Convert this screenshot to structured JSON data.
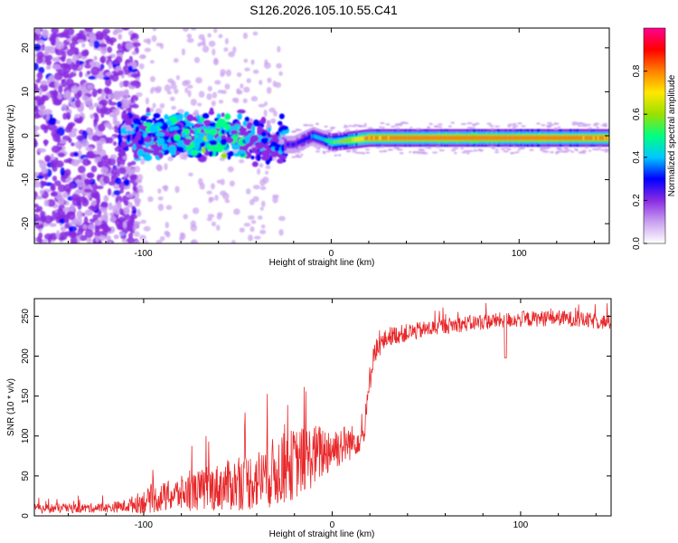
{
  "title": "S126.2026.105.10.55.C41",
  "chart_data": [
    {
      "type": "heatmap",
      "xlabel": "Height of straight line (km)",
      "ylabel": "Frequency (Hz)",
      "xlim": [
        -158,
        148
      ],
      "ylim": [
        -24.5,
        24.5
      ],
      "xticks": [
        -100,
        0,
        100
      ],
      "yticks": [
        -20,
        -10,
        0,
        10,
        20
      ],
      "colorbar": {
        "label": "Normalized spectral amplitude",
        "range": [
          0,
          1
        ],
        "ticks": [
          "0.0",
          "0.2",
          "0.4",
          "0.6",
          "0.8"
        ],
        "colors": [
          "#ffffff",
          "#c9a0f0",
          "#8a2be2",
          "#0000ff",
          "#00c8ff",
          "#00ff80",
          "#9be000",
          "#ffe800",
          "#ff8000",
          "#ff0000",
          "#ff0090"
        ]
      },
      "signal_track": {
        "description_points_x": [
          -158,
          -120,
          -100,
          -80,
          -60,
          -40,
          -30,
          -20,
          -10,
          0,
          20,
          60,
          100,
          148
        ],
        "centre_hz": [
          0,
          0,
          0,
          0,
          0,
          -1,
          -2,
          -2,
          0,
          -1.5,
          -0.5,
          -0.5,
          -0.5,
          -0.5
        ],
        "peak_amplitude": [
          0.15,
          0.2,
          0.35,
          0.4,
          0.45,
          0.35,
          0.3,
          0.3,
          0.4,
          0.6,
          0.9,
          0.95,
          0.95,
          0.9
        ]
      }
    },
    {
      "type": "line",
      "xlabel": "Height of straight line (km)",
      "ylabel": "SNR (10 * v/v)",
      "xlim": [
        -158,
        148
      ],
      "ylim": [
        0,
        272
      ],
      "xticks": [
        -100,
        0,
        100
      ],
      "yticks": [
        0,
        50,
        100,
        150,
        200,
        250
      ],
      "series": [
        {
          "name": "SNR",
          "color": "#e8282a",
          "anchor_x": [
            -158,
            -120,
            -110,
            -100,
            -80,
            -60,
            -40,
            -30,
            -20,
            -10,
            0,
            10,
            17,
            20,
            22,
            30,
            60,
            90,
            120,
            148
          ],
          "anchor_mean": [
            9,
            10,
            12,
            18,
            28,
            36,
            45,
            55,
            65,
            75,
            85,
            92,
            100,
            170,
            205,
            225,
            238,
            245,
            248,
            242
          ],
          "anchor_spread": [
            6,
            6,
            8,
            15,
            22,
            30,
            38,
            45,
            45,
            40,
            30,
            22,
            15,
            20,
            15,
            12,
            10,
            10,
            10,
            10
          ]
        }
      ]
    }
  ]
}
